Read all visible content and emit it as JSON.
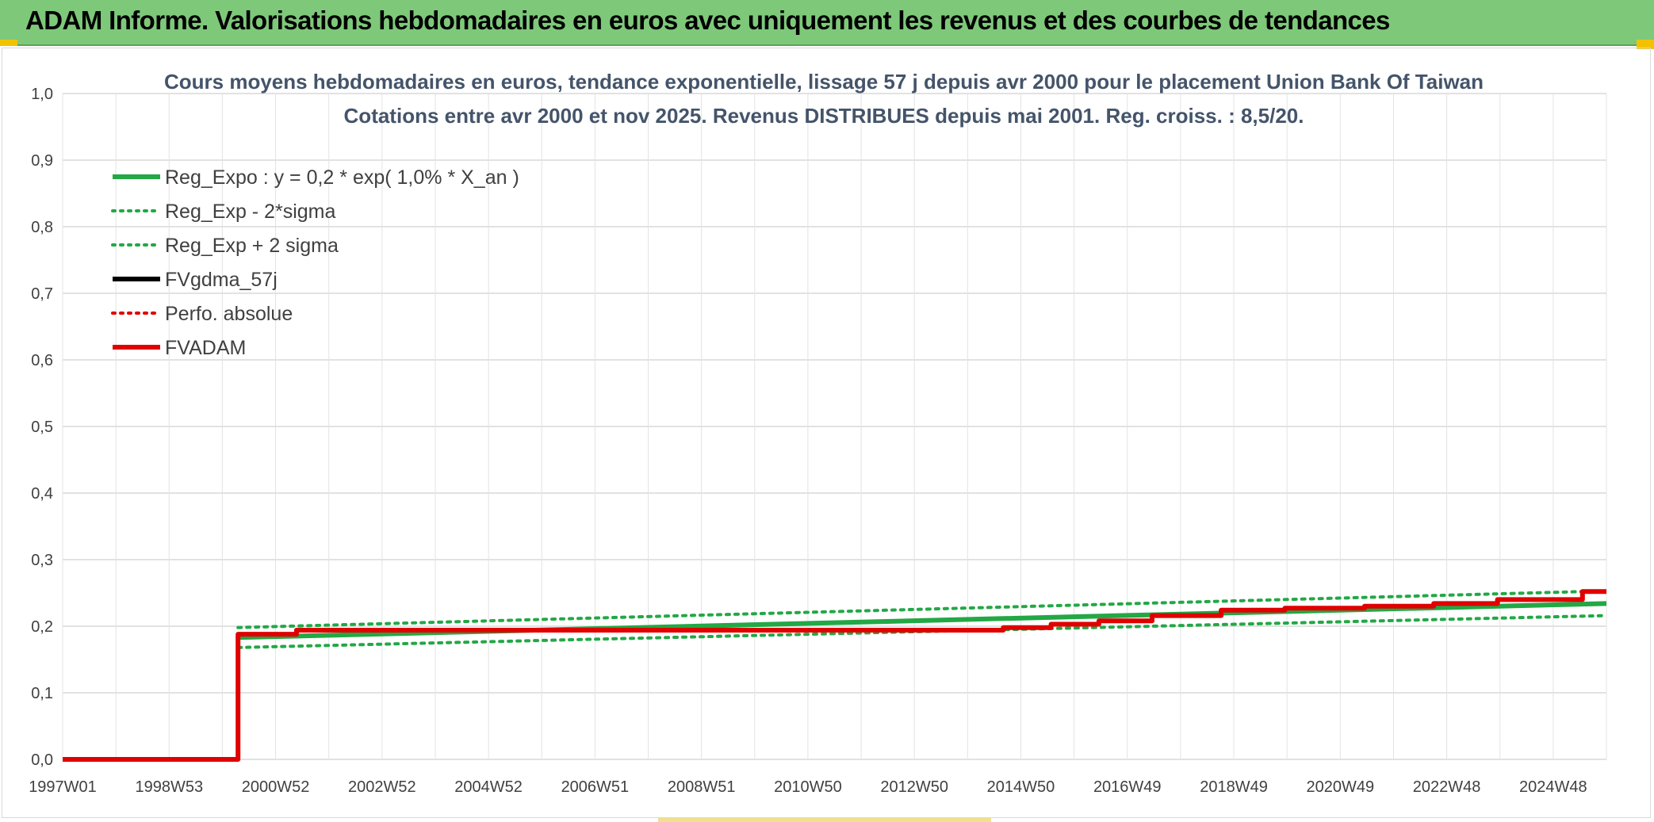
{
  "header": {
    "title": "ADAM Informe. Valorisations hebdomadaires en euros avec uniquement les revenus et des courbes de tendances"
  },
  "chart_data": {
    "type": "line",
    "title": "Cours moyens hebdomadaires en euros, tendance exponentielle, lissage 57 j depuis avr 2000 pour le placement Union Bank Of Taiwan",
    "subtitle": "Cotations entre avr 2000 et nov 2025. Revenus DISTRIBUES depuis mai 2001. Reg. croiss. : 8,5/20.",
    "xlabel": "",
    "ylabel": "",
    "x_ticks": [
      "1997W01",
      "1998W53",
      "2000W52",
      "2002W52",
      "2004W52",
      "2006W51",
      "2008W51",
      "2010W50",
      "2012W50",
      "2014W50",
      "2016W49",
      "2018W49",
      "2020W49",
      "2022W48",
      "2024W48"
    ],
    "y_ticks": [
      "0,0",
      "0,1",
      "0,2",
      "0,3",
      "0,4",
      "0,5",
      "0,6",
      "0,7",
      "0,8",
      "0,9",
      "1,0"
    ],
    "ylim": [
      0,
      1.0
    ],
    "xlim": [
      1997.0,
      2026.05
    ],
    "x_unit": "year",
    "grid": true,
    "legend_position": "top-left",
    "series": [
      {
        "name": "Reg_Expo : y = 0,2 * exp( 1,0% *  X_an )",
        "color": "#22a845",
        "style": "solid",
        "x": [
          2000.3,
          2026.05
        ],
        "y": [
          0.183,
          0.234
        ]
      },
      {
        "name": "Reg_Exp - 2*sigma",
        "color": "#22a845",
        "style": "dotted",
        "x": [
          2000.3,
          2026.05
        ],
        "y": [
          0.168,
          0.216
        ]
      },
      {
        "name": "Reg_Exp + 2 sigma",
        "color": "#22a845",
        "style": "dotted",
        "x": [
          2000.3,
          2026.05
        ],
        "y": [
          0.198,
          0.253
        ]
      },
      {
        "name": "FVgdma_57j",
        "color": "#000000",
        "style": "solid",
        "x": [],
        "y": []
      },
      {
        "name": "Perfo. absolue",
        "color": "#e00000",
        "style": "dotted",
        "x": [],
        "y": []
      },
      {
        "name": "FVADAM",
        "color": "#e00000",
        "style": "solid",
        "x": [
          1997.0,
          2000.3,
          2000.3,
          2001.4,
          2001.4,
          2014.7,
          2014.7,
          2015.6,
          2015.6,
          2016.5,
          2016.5,
          2017.5,
          2017.5,
          2018.8,
          2018.8,
          2020.0,
          2020.0,
          2021.5,
          2021.5,
          2022.8,
          2022.8,
          2024.0,
          2024.0,
          2025.6,
          2025.6,
          2026.05
        ],
        "y": [
          0.0,
          0.0,
          0.188,
          0.188,
          0.194,
          0.194,
          0.198,
          0.198,
          0.203,
          0.203,
          0.208,
          0.208,
          0.216,
          0.216,
          0.224,
          0.224,
          0.227,
          0.227,
          0.23,
          0.23,
          0.234,
          0.234,
          0.24,
          0.24,
          0.252,
          0.252
        ]
      }
    ]
  }
}
